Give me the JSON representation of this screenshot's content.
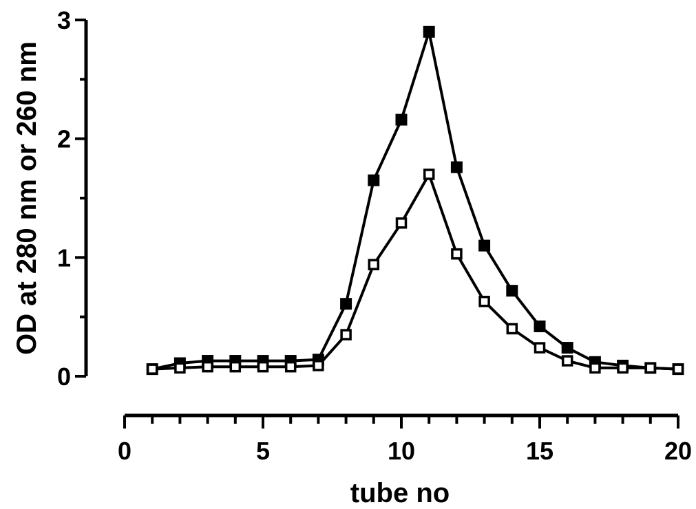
{
  "chart_data": {
    "type": "line",
    "xlabel": "tube no",
    "ylabel": "OD at 280 nm or 260 nm",
    "xlim": [
      0,
      20
    ],
    "ylim": [
      0,
      3
    ],
    "x_ticks": [
      "0",
      "5",
      "10",
      "15",
      "20"
    ],
    "y_ticks": [
      "0",
      "1",
      "2",
      "3"
    ],
    "grid": false,
    "x": [
      1,
      2,
      3,
      4,
      5,
      6,
      7,
      8,
      9,
      10,
      11,
      12,
      13,
      14,
      15,
      16,
      17,
      18,
      19,
      20
    ],
    "series": [
      {
        "marker": "filled-square",
        "color": "#000000",
        "values": [
          0.06,
          0.11,
          0.13,
          0.13,
          0.13,
          0.13,
          0.14,
          0.61,
          1.65,
          2.16,
          2.9,
          1.76,
          1.1,
          0.72,
          0.42,
          0.24,
          0.12,
          0.09,
          0.07,
          0.06
        ]
      },
      {
        "marker": "open-square",
        "color": "#000000",
        "values": [
          0.06,
          0.07,
          0.08,
          0.08,
          0.08,
          0.08,
          0.09,
          0.35,
          0.94,
          1.29,
          1.7,
          1.03,
          0.63,
          0.4,
          0.24,
          0.13,
          0.07,
          0.07,
          0.07,
          0.06
        ]
      }
    ]
  }
}
